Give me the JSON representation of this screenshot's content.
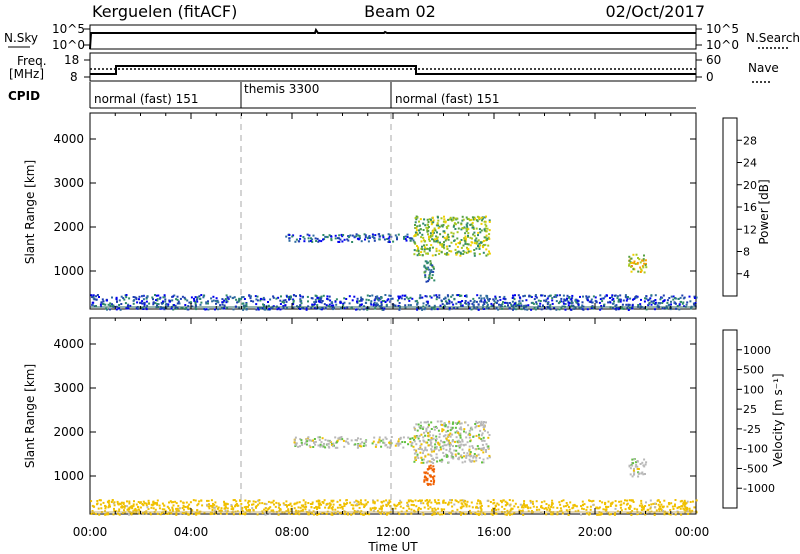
{
  "header": {
    "station": "Kerguelen (fitACF)",
    "beam": "Beam 02",
    "date": "02/Oct/2017"
  },
  "strips": {
    "nsky_label": "N.Sky",
    "nsearch_label": "N.Search",
    "freq_label_1": "Freq.",
    "freq_label_2": "[MHz]",
    "nave_label": "Nave",
    "cpid_label": "CPID",
    "nsky_ticks": [
      "10^5",
      "10^0"
    ],
    "nsearch_ticks": [
      "10^5",
      "10^0"
    ],
    "freq_ticks": [
      "18",
      "8"
    ],
    "nave_ticks": [
      "60",
      "0"
    ]
  },
  "cpid": [
    {
      "label": "normal (fast) 151",
      "start_hr": 0,
      "end_hr": 6
    },
    {
      "label": "themis 3300",
      "start_hr": 6,
      "end_hr": 12
    },
    {
      "label": "normal (fast) 151",
      "start_hr": 12,
      "end_hr": 24
    }
  ],
  "axes": {
    "xlabel": "Time UT",
    "x_ticks": [
      "00:00",
      "04:00",
      "08:00",
      "12:00",
      "16:00",
      "20:00",
      "00:00"
    ],
    "ylabel": "Slant Range [km]",
    "y_ticks": [
      "1000",
      "2000",
      "3000",
      "4000"
    ]
  },
  "power_scale": {
    "label": "Power [dB]",
    "ticks": [
      "4",
      "8",
      "12",
      "16",
      "20",
      "24",
      "28"
    ],
    "colors": [
      "#0000ee",
      "#1e3fb0",
      "#2e6aa0",
      "#2f8a6a",
      "#55a040",
      "#a8c820",
      "#f0d000",
      "#f5a000",
      "#f06000",
      "#e02010"
    ]
  },
  "velocity_scale": {
    "label": "Velocity [m s⁻¹]",
    "ticks": [
      "1000",
      "500",
      "100",
      "25",
      "-25",
      "-100",
      "-500",
      "-1000"
    ],
    "colors": [
      "#1030c0",
      "#3050a0",
      "#2e8a50",
      "#60c040",
      "#b8b8b8",
      "#c8c8c8",
      "#f0c000",
      "#f09000",
      "#f06000",
      "#e02010"
    ]
  },
  "chart_data": [
    {
      "type": "heatmap",
      "title": "Kerguelen (fitACF) Beam 02 02/Oct/2017",
      "quantity": "Power",
      "unit": "dB",
      "xlabel": "Time UT",
      "ylabel": "Slant Range [km]",
      "xlim": [
        0,
        24
      ],
      "ylim": [
        180,
        4620
      ],
      "clim": [
        0,
        32
      ],
      "features": [
        {
          "t_start": 0,
          "t_end": 24,
          "r_start": 180,
          "r_end": 520,
          "value": 6
        },
        {
          "t_start": 7.6,
          "t_end": 12.8,
          "r_start": 1720,
          "r_end": 1900,
          "value": 6
        },
        {
          "t_start": 12.8,
          "t_end": 15.8,
          "r_start": 1400,
          "r_end": 2300,
          "value": 16
        },
        {
          "t_start": 13.2,
          "t_end": 13.6,
          "r_start": 800,
          "r_end": 1300,
          "value": 10
        },
        {
          "t_start": 21.3,
          "t_end": 22.0,
          "r_start": 1000,
          "r_end": 1450,
          "value": 20
        }
      ]
    },
    {
      "type": "heatmap",
      "title": "Kerguelen (fitACF) Beam 02 02/Oct/2017",
      "quantity": "Velocity",
      "unit": "m s-1",
      "xlabel": "Time UT",
      "ylabel": "Slant Range [km]",
      "xlim": [
        0,
        24
      ],
      "ylim": [
        180,
        4620
      ],
      "features": [
        {
          "t_start": 0,
          "t_end": 24,
          "r_start": 180,
          "r_end": 520,
          "value": -60
        },
        {
          "t_start": 8.0,
          "t_end": 12.8,
          "r_start": 1700,
          "r_end": 1950,
          "value": 0
        },
        {
          "t_start": 12.8,
          "t_end": 15.8,
          "r_start": 1350,
          "r_end": 2300,
          "value": 0
        },
        {
          "t_start": 13.2,
          "t_end": 13.6,
          "r_start": 850,
          "r_end": 1300,
          "value": -400
        },
        {
          "t_start": 21.3,
          "t_end": 22.0,
          "r_start": 1050,
          "r_end": 1450,
          "value": 0
        }
      ]
    }
  ]
}
